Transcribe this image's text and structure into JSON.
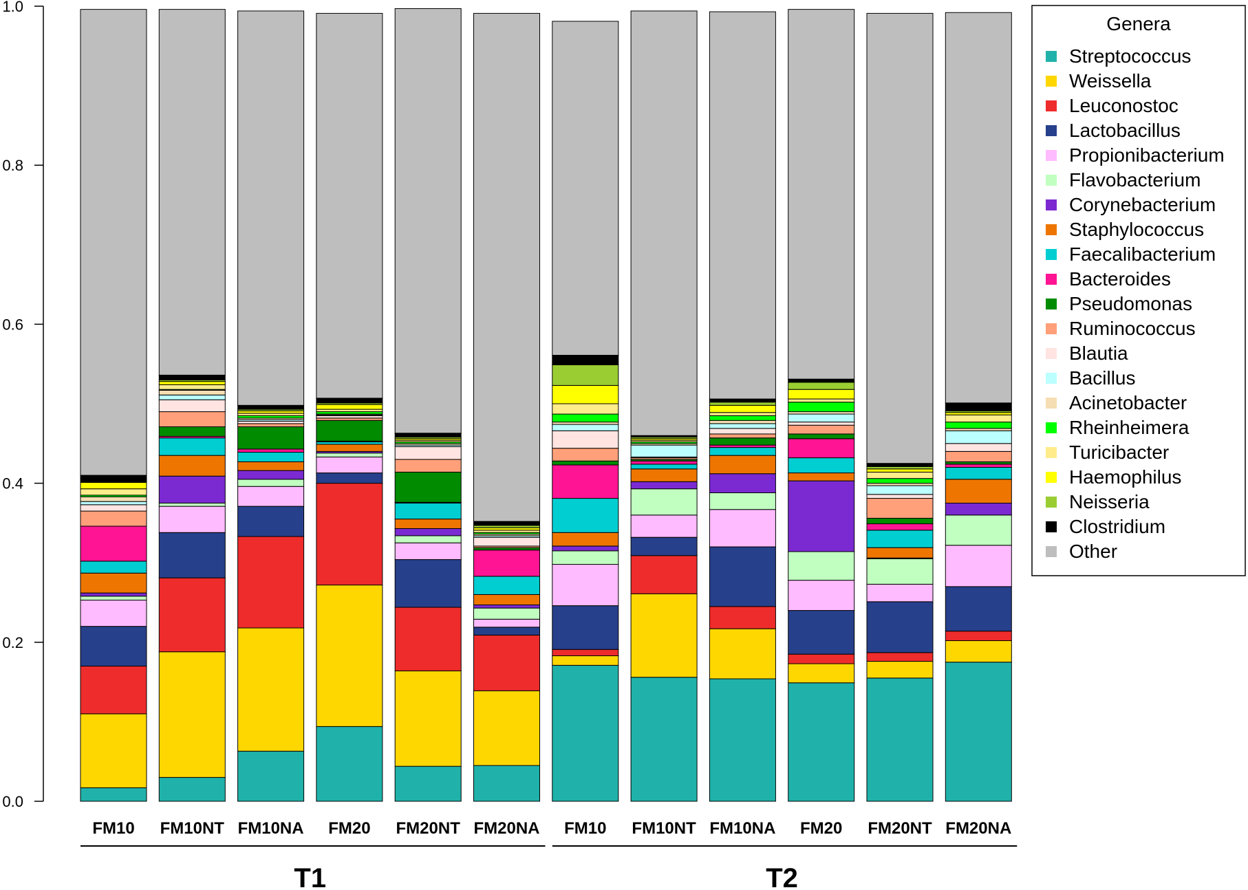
{
  "chart_data": {
    "type": "bar",
    "stacked": true,
    "ylim": [
      0,
      1
    ],
    "yticks": [
      "0.0",
      "0.2",
      "0.4",
      "0.6",
      "0.8",
      "1.0"
    ],
    "categories": [
      "FM10",
      "FM10NT",
      "FM10NA",
      "FM20",
      "FM20NT",
      "FM20NA",
      "FM10",
      "FM10NT",
      "FM10NA",
      "FM20",
      "FM20NT",
      "FM20NA"
    ],
    "groups": [
      {
        "label": "T1",
        "start": 0,
        "end": 5
      },
      {
        "label": "T2",
        "start": 6,
        "end": 11
      }
    ],
    "legend_title": "Genera",
    "legend_position": "right",
    "series": [
      {
        "name": "Streptococcus",
        "color": "#20B2AA",
        "values": [
          0.017,
          0.03,
          0.063,
          0.094,
          0.044,
          0.045,
          0.171,
          0.156,
          0.154,
          0.149,
          0.155,
          0.175
        ]
      },
      {
        "name": "Weissella",
        "color": "#FFD700",
        "values": [
          0.093,
          0.158,
          0.155,
          0.178,
          0.12,
          0.094,
          0.012,
          0.105,
          0.063,
          0.024,
          0.021,
          0.027
        ]
      },
      {
        "name": "Leuconostoc",
        "color": "#EE2C2C",
        "values": [
          0.06,
          0.093,
          0.115,
          0.128,
          0.08,
          0.07,
          0.008,
          0.048,
          0.028,
          0.012,
          0.011,
          0.012
        ]
      },
      {
        "name": "Lactobacillus",
        "color": "#27408B",
        "values": [
          0.05,
          0.057,
          0.038,
          0.013,
          0.06,
          0.01,
          0.055,
          0.023,
          0.075,
          0.055,
          0.064,
          0.056
        ]
      },
      {
        "name": "Propionibacterium",
        "color": "#FFBBFF",
        "values": [
          0.033,
          0.033,
          0.025,
          0.02,
          0.021,
          0.01,
          0.052,
          0.028,
          0.047,
          0.038,
          0.022,
          0.052
        ]
      },
      {
        "name": "Flavobacterium",
        "color": "#C1FFC1",
        "values": [
          0.005,
          0.004,
          0.009,
          0.005,
          0.009,
          0.014,
          0.017,
          0.033,
          0.021,
          0.036,
          0.032,
          0.038
        ]
      },
      {
        "name": "Corynebacterium",
        "color": "#7B2AD1",
        "values": [
          0.004,
          0.034,
          0.011,
          0.002,
          0.009,
          0.004,
          0.006,
          0.009,
          0.024,
          0.089,
          0.001,
          0.015
        ]
      },
      {
        "name": "Staphylococcus",
        "color": "#EE7600",
        "values": [
          0.025,
          0.026,
          0.011,
          0.009,
          0.012,
          0.013,
          0.017,
          0.016,
          0.023,
          0.01,
          0.013,
          0.03
        ]
      },
      {
        "name": "Faecalibacterium",
        "color": "#00CED1",
        "values": [
          0.015,
          0.022,
          0.012,
          0.003,
          0.02,
          0.023,
          0.043,
          0.006,
          0.01,
          0.019,
          0.022,
          0.015
        ]
      },
      {
        "name": "Bacteroides",
        "color": "#FF1493",
        "values": [
          0.044,
          0.002,
          0.004,
          0.001,
          0.001,
          0.033,
          0.042,
          0.004,
          0.003,
          0.024,
          0.008,
          0.004
        ]
      },
      {
        "name": "Pseudomonas",
        "color": "#008B00",
        "values": [
          0.0,
          0.012,
          0.028,
          0.026,
          0.038,
          0.003,
          0.005,
          0.002,
          0.009,
          0.006,
          0.007,
          0.003
        ]
      },
      {
        "name": "Ruminococcus",
        "color": "#FFA07A",
        "values": [
          0.019,
          0.019,
          0.004,
          0.003,
          0.016,
          0.002,
          0.016,
          0.002,
          0.005,
          0.011,
          0.025,
          0.013
        ]
      },
      {
        "name": "Blautia",
        "color": "#FFE4E1",
        "values": [
          0.008,
          0.015,
          0.003,
          0.003,
          0.016,
          0.011,
          0.022,
          0.001,
          0.007,
          0.004,
          0.005,
          0.01
        ]
      },
      {
        "name": "Bacillus",
        "color": "#BBFFFF",
        "values": [
          0.004,
          0.006,
          0.002,
          0.001,
          0.002,
          0.002,
          0.008,
          0.015,
          0.006,
          0.01,
          0.011,
          0.016
        ]
      },
      {
        "name": "Acinetobacter",
        "color": "#F5DEB3",
        "values": [
          0.006,
          0.006,
          0.002,
          0.001,
          0.002,
          0.002,
          0.003,
          0.002,
          0.004,
          0.003,
          0.003,
          0.003
        ]
      },
      {
        "name": "Rheinheimera",
        "color": "#00FF00",
        "values": [
          0.002,
          0.001,
          0.003,
          0.003,
          0.002,
          0.002,
          0.01,
          0.002,
          0.006,
          0.012,
          0.006,
          0.008
        ]
      },
      {
        "name": "Turicibacter",
        "color": "#FFEC8B",
        "values": [
          0.008,
          0.006,
          0.003,
          0.003,
          0.002,
          0.003,
          0.013,
          0.002,
          0.004,
          0.004,
          0.008,
          0.009
        ]
      },
      {
        "name": "Haemophilus",
        "color": "#FFFF00",
        "values": [
          0.008,
          0.004,
          0.003,
          0.006,
          0.002,
          0.003,
          0.023,
          0.002,
          0.009,
          0.012,
          0.004,
          0.003
        ]
      },
      {
        "name": "Neisseria",
        "color": "#9ACD32",
        "values": [
          0.001,
          0.002,
          0.002,
          0.002,
          0.002,
          0.003,
          0.026,
          0.002,
          0.004,
          0.009,
          0.003,
          0.002
        ]
      },
      {
        "name": "Clostridium",
        "color": "#000000",
        "values": [
          0.008,
          0.006,
          0.005,
          0.006,
          0.005,
          0.005,
          0.012,
          0.002,
          0.004,
          0.004,
          0.004,
          0.01
        ]
      },
      {
        "name": "Other",
        "color": "#BEBEBE",
        "values": [
          0.586,
          0.46,
          0.496,
          0.484,
          0.534,
          0.639,
          0.42,
          0.534,
          0.487,
          0.465,
          0.566,
          0.491
        ]
      }
    ]
  }
}
